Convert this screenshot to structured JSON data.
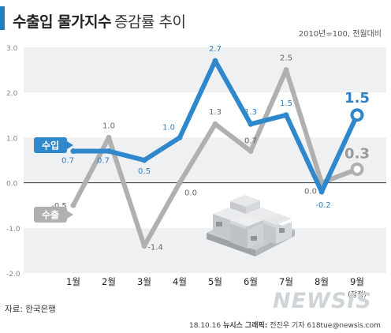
{
  "header": {
    "title_bold": "수출입 물가지수",
    "title_rest": "증감률 추이",
    "unit_note": "2010년=100, 전월대비"
  },
  "footer": {
    "source": "자료: 한국은행",
    "credit_date": "18.10.16",
    "credit_org": "뉴시스 그래픽:",
    "credit_person": "전진우 기자 618tue@newsis.com",
    "watermark": "NEWSIS"
  },
  "chart_data": {
    "type": "line",
    "categories": [
      "1월",
      "2월",
      "3월",
      "4월",
      "5월",
      "6월",
      "7월",
      "8월",
      "9월"
    ],
    "category_note": "(잠정)",
    "ylim": [
      -2.0,
      3.0
    ],
    "yticks": [
      "3.0",
      "2.0",
      "1.0",
      "0.0",
      "-1.0",
      "-2.0"
    ],
    "series": [
      {
        "name": "수입",
        "color": "#2f87cc",
        "values": [
          0.7,
          0.7,
          0.5,
          1.0,
          2.7,
          1.3,
          1.5,
          -0.2,
          1.5
        ],
        "labels": [
          "0.7",
          "0.7",
          "0.5",
          "1.0",
          "2.7",
          "1.3",
          "1.5",
          "-0.2",
          "1.5"
        ]
      },
      {
        "name": "수출",
        "color": "#b0b0b0",
        "values": [
          -0.5,
          1.0,
          -1.4,
          0.0,
          1.3,
          0.7,
          2.5,
          0.0,
          0.3
        ],
        "labels": [
          "-0.5",
          "1.0",
          "-1.4",
          "0.0",
          "1.3",
          "0.7",
          "2.5",
          "0.0",
          "0.3"
        ]
      }
    ]
  }
}
